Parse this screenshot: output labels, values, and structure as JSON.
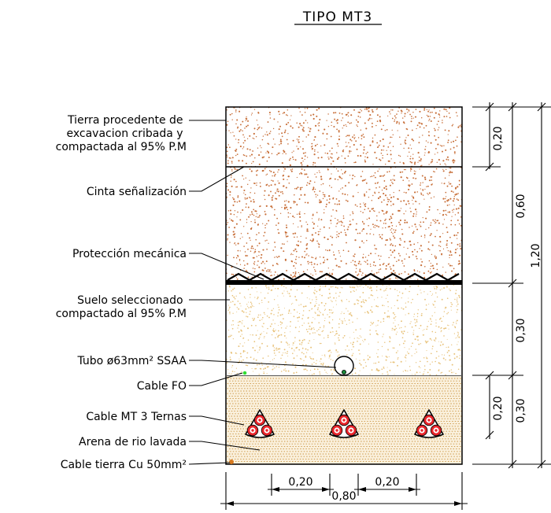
{
  "title": "TIPO MT3",
  "labels": {
    "tierra": [
      "Tierra procedente de",
      "excavacion cribada y",
      "compactada al 95% P.M"
    ],
    "cinta": "Cinta señalización",
    "proteccion": "Protección mecánica",
    "suelo": [
      "Suelo seleccionado",
      "compactado al 95% P.M"
    ],
    "tubo": "Tubo ø63mm² SSAA",
    "cable_fo": "Cable FO",
    "cable_mt": "Cable MT 3 Ternas",
    "arena": "Arena de rio lavada",
    "cable_tierra": "Cable tierra Cu 50mm²"
  },
  "dimensions": {
    "v_020_top": "0,20",
    "v_060": "0,60",
    "v_120": "1,20",
    "v_030_mid": "0,30",
    "v_020_bottom": "0,20",
    "v_030_bottom": "0,30",
    "h_020_left": "0,20",
    "h_020_right": "0,20",
    "h_080": "0,80"
  },
  "colors": {
    "fill_soil": "#c8703a",
    "fill_select": "#e8c27a",
    "fill_sand": "#c8903a",
    "sand_bg": "#faf0dc",
    "cable_red": "#e8242a",
    "fo_green": "#33dd33",
    "earth_orange": "#d77a20"
  }
}
